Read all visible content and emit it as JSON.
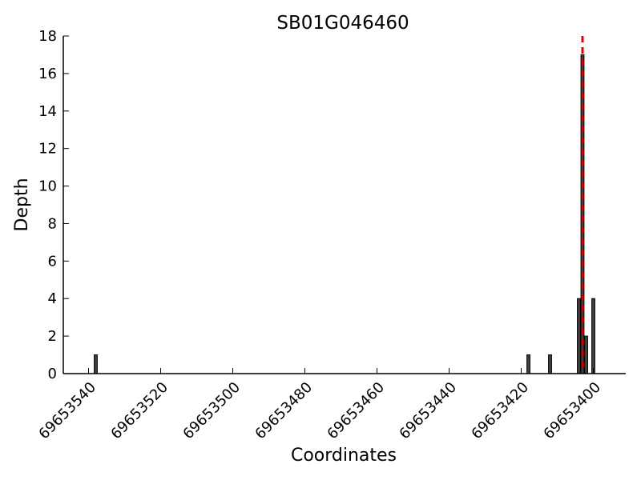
{
  "chart_data": {
    "type": "bar",
    "title": "SB01G046460",
    "xlabel": "Coordinates",
    "ylabel": "Depth",
    "xlim": [
      69653547,
      69653391
    ],
    "ylim": [
      0,
      18
    ],
    "x_ticks": [
      69653540,
      69653520,
      69653500,
      69653480,
      69653460,
      69653440,
      69653420,
      69653400
    ],
    "x_tick_labels": [
      "69653540",
      "69653520",
      "69653500",
      "69653480",
      "69653460",
      "69653440",
      "69653420",
      "69653400"
    ],
    "y_ticks": [
      0,
      2,
      4,
      6,
      8,
      10,
      12,
      14,
      16,
      18
    ],
    "y_tick_labels": [
      "0",
      "2",
      "4",
      "6",
      "8",
      "10",
      "12",
      "14",
      "16",
      "18"
    ],
    "x_axis_reversed": true,
    "grid": false,
    "series": [
      {
        "x": [
          69653538,
          69653418,
          69653412,
          69653404,
          69653403,
          69653402,
          69653400
        ],
        "values": [
          1,
          1,
          1,
          4,
          17,
          2,
          4
        ],
        "color": "#404040"
      }
    ],
    "reference_line": {
      "x": 69653403,
      "style": "dashed",
      "color": "#dd0000"
    }
  }
}
